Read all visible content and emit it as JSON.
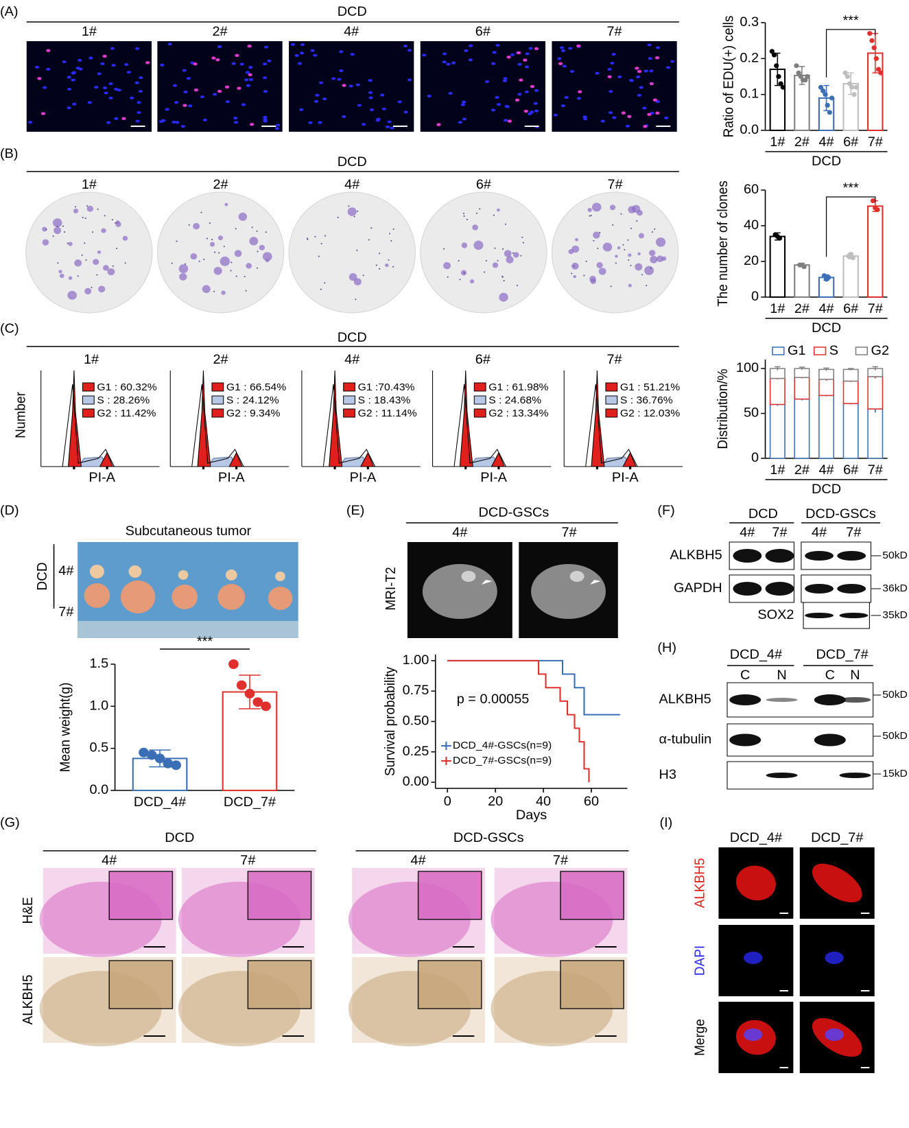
{
  "panels": {
    "A": {
      "label": "(A)",
      "group": "DCD",
      "samples": [
        "1#",
        "2#",
        "4#",
        "6#",
        "7#"
      ]
    },
    "B": {
      "label": "(B)",
      "group": "DCD",
      "samples": [
        "1#",
        "2#",
        "4#",
        "6#",
        "7#"
      ]
    },
    "C": {
      "label": "(C)",
      "group": "DCD",
      "samples": [
        "1#",
        "2#",
        "4#",
        "6#",
        "7#"
      ],
      "y_label": "Number",
      "x_label": "PI-A",
      "stats": [
        [
          "G1 : 60.32%",
          "S : 28.26%",
          "G2 : 11.42%"
        ],
        [
          "G1 : 66.54%",
          "S : 24.12%",
          "G2 : 9.34%"
        ],
        [
          "G1 :70.43%",
          "S : 18.43%",
          "G2 : 11.14%"
        ],
        [
          "G1 : 61.98%",
          "S : 24.68%",
          "G2 : 13.34%"
        ],
        [
          "G1 : 51.21%",
          "S : 36.76%",
          "G2 : 12.03%"
        ]
      ]
    },
    "D": {
      "label": "(D)",
      "title": "Subcutaneous tumor",
      "group": "DCD",
      "rows": [
        "4#",
        "7#"
      ]
    },
    "E": {
      "label": "(E)",
      "group": "DCD-GSCs",
      "samples": [
        "4#",
        "7#"
      ],
      "row_label": "MRI-T2"
    },
    "F": {
      "label": "(F)",
      "groups": [
        "DCD",
        "DCD-GSCs"
      ],
      "lanes": [
        "4#",
        "7#",
        "4#",
        "7#"
      ],
      "proteins": [
        "ALKBH5",
        "GAPDH",
        "SOX2"
      ],
      "sizes": [
        "50kD",
        "36kD",
        "35kD"
      ]
    },
    "G": {
      "label": "(G)",
      "groups": [
        "DCD",
        "DCD-GSCs"
      ],
      "samples": [
        "4#",
        "7#",
        "4#",
        "7#"
      ],
      "rows": [
        "H&E",
        "ALKBH5"
      ]
    },
    "H": {
      "label": "(H)",
      "groups": [
        "DCD_4#",
        "DCD_7#"
      ],
      "lanes": [
        "C",
        "N",
        "C",
        "N"
      ],
      "proteins": [
        "ALKBH5",
        "α-tubulin",
        "H3"
      ],
      "sizes": [
        "50kD",
        "50kD",
        "15kD"
      ]
    },
    "I": {
      "label": "(I)",
      "columns": [
        "DCD_4#",
        "DCD_7#"
      ],
      "rows": [
        "ALKBH5",
        "DAPI",
        "Merge"
      ]
    }
  },
  "chart_data": [
    {
      "type": "bar",
      "ylabel": "Ratio of EDU(+) cells",
      "xlabel": "DCD",
      "annotation": "***",
      "categories": [
        "1#",
        "2#",
        "4#",
        "6#",
        "7#"
      ],
      "values": [
        0.17,
        0.153,
        0.09,
        0.13,
        0.215
      ],
      "errors": [
        0.045,
        0.025,
        0.035,
        0.03,
        0.055
      ],
      "points": [
        [
          0.22,
          0.21,
          0.18,
          0.15,
          0.13,
          0.12
        ],
        [
          0.18,
          0.16,
          0.15,
          0.14,
          0.14,
          0.15
        ],
        [
          0.12,
          0.11,
          0.1,
          0.07,
          0.05,
          0.09
        ],
        [
          0.16,
          0.15,
          0.13,
          0.12,
          0.1,
          0.12
        ],
        [
          0.27,
          0.25,
          0.23,
          0.2,
          0.17,
          0.16
        ]
      ],
      "colors": [
        "#000000",
        "#7f7f7f",
        "#3a6fb5",
        "#bfbfbf",
        "#e0302e"
      ],
      "ylim": [
        0,
        0.3
      ],
      "yticks": [
        {
          "value": 0,
          "label": "0.0"
        },
        0.1,
        0.2,
        0.3
      ]
    },
    {
      "type": "bar",
      "ylabel": "The number of clones",
      "xlabel": "DCD",
      "annotation": "***",
      "categories": [
        "1#",
        "2#",
        "4#",
        "6#",
        "7#"
      ],
      "values": [
        34,
        18,
        11,
        23,
        51
      ],
      "errors": [
        2,
        1,
        1.5,
        1.5,
        3
      ],
      "points": [
        [
          35,
          34,
          33
        ],
        [
          18,
          18,
          17
        ],
        [
          12,
          10,
          11
        ],
        [
          23,
          24,
          22
        ],
        [
          54,
          50,
          49
        ]
      ],
      "colors": [
        "#000000",
        "#7f7f7f",
        "#3a6fb5",
        "#bfbfbf",
        "#e0302e"
      ],
      "ylim": [
        0,
        60
      ],
      "yticks": [
        0,
        20,
        40,
        60
      ]
    },
    {
      "type": "stacked_bar",
      "ylabel": "Distribution/%",
      "xlabel": "DCD",
      "categories": [
        "1#",
        "2#",
        "4#",
        "6#",
        "7#"
      ],
      "series": [
        {
          "name": "G1",
          "color": "#3a6fb5",
          "values": [
            60,
            66,
            70,
            61,
            55
          ],
          "errors": [
            1.5,
            1.5,
            1,
            1,
            4
          ]
        },
        {
          "name": "S",
          "color": "#e0302e",
          "values": [
            29,
            24,
            18,
            25,
            36
          ],
          "errors": [
            1,
            1,
            1.5,
            1,
            2
          ]
        },
        {
          "name": "G2",
          "color": "#7f7f7f",
          "values": [
            11,
            10,
            11,
            13,
            9
          ],
          "errors": [
            2,
            1.5,
            1.5,
            1,
            2
          ]
        }
      ],
      "ylim": [
        0,
        110
      ],
      "yticks": [
        0,
        50,
        100
      ]
    },
    {
      "type": "bar",
      "ylabel": "Mean weight(g)",
      "annotation": "***",
      "categories": [
        "DCD_4#",
        "DCD_7#"
      ],
      "values": [
        0.38,
        1.17
      ],
      "errors": [
        0.1,
        0.2
      ],
      "points": [
        [
          0.45,
          0.42,
          0.38,
          0.32,
          0.3
        ],
        [
          1.5,
          1.25,
          1.15,
          1.05,
          1.0
        ]
      ],
      "colors": [
        "#3a6fb5",
        "#e0302e"
      ],
      "ylim": [
        0,
        1.5
      ],
      "yticks": [
        {
          "value": 0,
          "label": "0.0"
        },
        0.5,
        {
          "value": 1,
          "label": "1.0"
        },
        1.5
      ]
    },
    {
      "type": "line",
      "step": true,
      "xlabel": "Days",
      "ylabel": "Survival probability",
      "annotation": "p = 0.00055",
      "xlim": [
        -5,
        75
      ],
      "xticks": [
        0,
        20,
        40,
        60
      ],
      "ylim": [
        -0.05,
        1.05
      ],
      "yticks": [
        {
          "value": 0,
          "label": "0.00"
        },
        0.25,
        {
          "value": 0.5,
          "label": "0.50"
        },
        0.75,
        {
          "value": 1,
          "label": "1.00"
        }
      ],
      "series": [
        {
          "name": "DCD_4#-GSCs(n=9)",
          "color": "#3a6fb5",
          "x": [
            0,
            48,
            53,
            57,
            72
          ],
          "values": [
            1,
            0.889,
            0.778,
            0.556,
            0.556
          ]
        },
        {
          "name": "DCD_7#-GSCs(n=9)",
          "color": "#e0302e",
          "x": [
            0,
            38,
            41,
            47,
            50,
            53,
            55,
            57,
            59
          ],
          "values": [
            1,
            0.889,
            0.778,
            0.667,
            0.556,
            0.444,
            0.333,
            0.111,
            0
          ]
        }
      ]
    }
  ]
}
